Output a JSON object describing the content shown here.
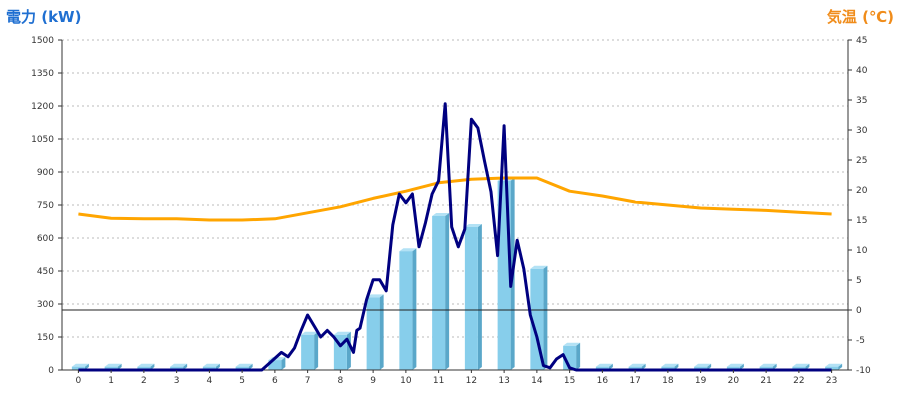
{
  "chart_data": {
    "type": "bar",
    "left_axis_title": "電力 (kW)",
    "right_axis_title": "気温 (℃)",
    "categories": [
      "0",
      "1",
      "2",
      "3",
      "4",
      "5",
      "6",
      "7",
      "8",
      "9",
      "10",
      "11",
      "12",
      "13",
      "14",
      "15",
      "16",
      "17",
      "18",
      "19",
      "20",
      "21",
      "22",
      "23"
    ],
    "left_axis": {
      "min": 0,
      "max": 1500,
      "ticks": [
        0,
        150,
        300,
        450,
        600,
        750,
        900,
        1050,
        1200,
        1350,
        1500
      ]
    },
    "right_axis": {
      "min": -10,
      "max": 45,
      "ticks": [
        -10,
        -5,
        0,
        5,
        10,
        15,
        20,
        25,
        30,
        35,
        40,
        45
      ]
    },
    "grid": "horizontal-dashed",
    "legend": "none",
    "bars": {
      "axis": "left",
      "values": [
        15,
        15,
        15,
        15,
        15,
        15,
        45,
        160,
        160,
        330,
        540,
        700,
        650,
        860,
        460,
        110,
        15,
        15,
        15,
        15,
        15,
        15,
        15,
        15
      ]
    },
    "power_line": {
      "axis": "left",
      "x": [
        0,
        1,
        2,
        3,
        4,
        5,
        5.6,
        5.9,
        6.2,
        6.4,
        6.6,
        6.8,
        7.0,
        7.2,
        7.4,
        7.6,
        7.8,
        8.0,
        8.2,
        8.4,
        8.5,
        8.6,
        8.8,
        9.0,
        9.2,
        9.4,
        9.6,
        9.8,
        10.0,
        10.2,
        10.4,
        10.6,
        10.8,
        11.0,
        11.2,
        11.4,
        11.6,
        11.8,
        12.0,
        12.2,
        12.4,
        12.6,
        12.8,
        13.0,
        13.2,
        13.4,
        13.6,
        13.8,
        14.0,
        14.2,
        14.4,
        14.6,
        14.8,
        15.0,
        15.2,
        15.4,
        15.6,
        15.8,
        16.0,
        17,
        18,
        19,
        20,
        21,
        22,
        23
      ],
      "y": [
        0,
        0,
        0,
        0,
        0,
        0,
        0,
        40,
        80,
        60,
        100,
        180,
        250,
        200,
        150,
        180,
        150,
        110,
        140,
        80,
        180,
        190,
        320,
        410,
        410,
        360,
        660,
        800,
        760,
        800,
        560,
        670,
        800,
        860,
        1210,
        650,
        560,
        640,
        1140,
        1100,
        950,
        810,
        520,
        1110,
        380,
        590,
        460,
        250,
        150,
        20,
        10,
        50,
        70,
        10,
        0,
        0,
        0,
        0,
        0,
        0,
        0,
        0,
        0,
        0,
        0,
        0
      ]
    },
    "temperature_line": {
      "axis": "right",
      "x": [
        0,
        1,
        2,
        3,
        4,
        5,
        6,
        7,
        8,
        9,
        10,
        11,
        12,
        13,
        14,
        15,
        16,
        17,
        18,
        19,
        20,
        21,
        22,
        23
      ],
      "y": [
        16,
        15.3,
        15.2,
        15.2,
        15,
        15,
        15.2,
        16.2,
        17.2,
        18.6,
        19.8,
        21.2,
        21.8,
        22,
        22,
        19.8,
        19,
        18,
        17.5,
        17,
        16.8,
        16.6,
        16.3,
        16
      ]
    },
    "zero_line": {
      "axis": "right",
      "value": 0
    },
    "colors": {
      "left_title": "#1f6fd1",
      "right_title": "#f08c1a",
      "bar_front": "#87ceeb",
      "bar_side": "#5aa7c9",
      "bar_top": "#b3e2f5",
      "power_line": "#000080",
      "temperature_line": "#ffa500",
      "grid": "#bbbbbb",
      "axis": "#333333"
    }
  }
}
